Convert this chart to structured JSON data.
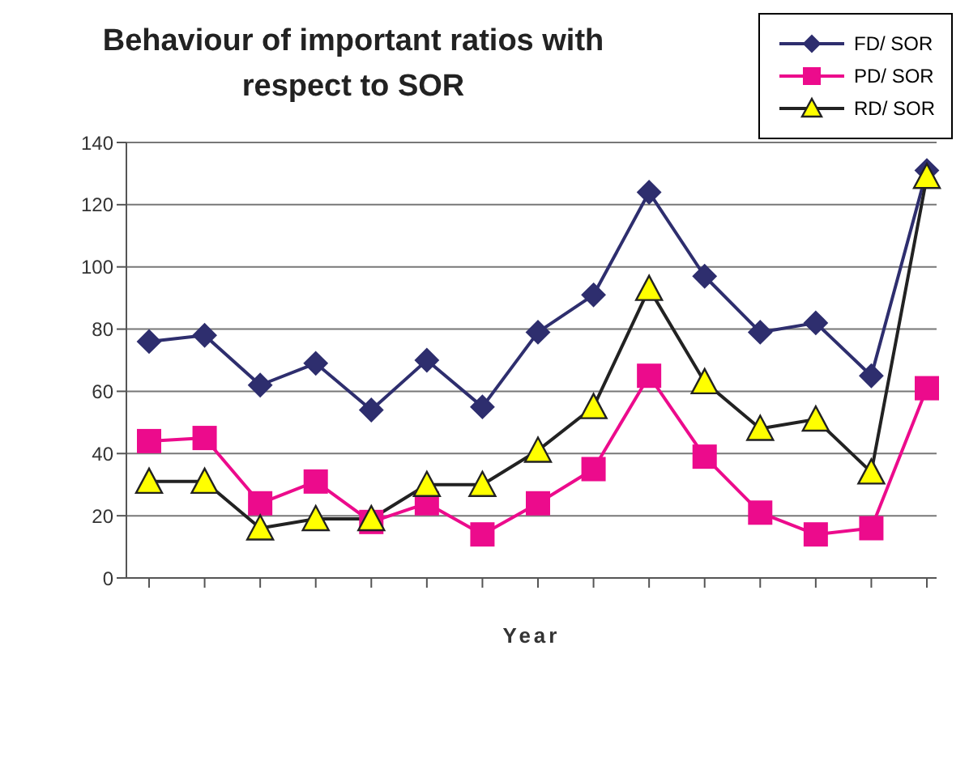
{
  "chart_data": {
    "type": "line",
    "title": "Behaviour of important ratios with respect to SOR",
    "xlabel": "Year",
    "categories": [
      null,
      null,
      null,
      null,
      null,
      null,
      null,
      null,
      null,
      null,
      null,
      null,
      null,
      null,
      null
    ],
    "series": [
      {
        "name": "FD/ SOR",
        "color": "#2e2e6e",
        "marker": "diamond",
        "values": [
          76,
          78,
          62,
          69,
          54,
          70,
          55,
          79,
          91,
          124,
          97,
          79,
          82,
          65,
          131
        ]
      },
      {
        "name": "PD/ SOR",
        "color": "#ec0b8c",
        "marker": "square",
        "values": [
          44,
          45,
          24,
          31,
          18,
          24,
          14,
          24,
          35,
          65,
          39,
          21,
          14,
          16,
          61
        ]
      },
      {
        "name": "RD/ SOR",
        "color": "#222222",
        "marker": "triangle",
        "values": [
          31,
          31,
          16,
          19,
          19,
          30,
          30,
          41,
          55,
          93,
          63,
          48,
          51,
          34,
          129
        ]
      }
    ],
    "ylim": [
      0,
      140
    ],
    "yticks": [
      0,
      20,
      40,
      60,
      80,
      100,
      120,
      140
    ],
    "grid": "y",
    "legend": "top right"
  }
}
